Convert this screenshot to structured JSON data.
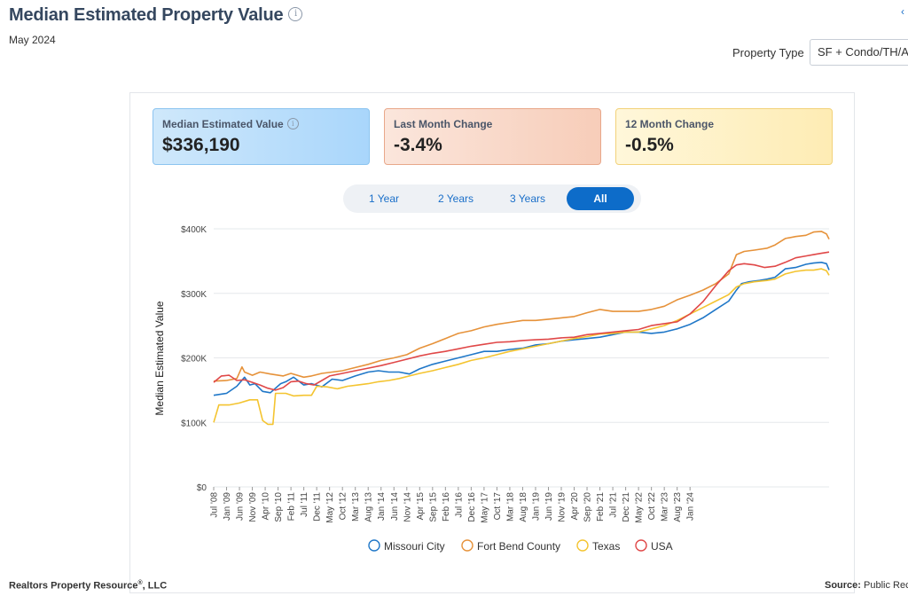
{
  "header": {
    "title": "Median Estimated Property Value",
    "subtitle": "May 2024",
    "property_type_label": "Property Type",
    "property_type_value": "SF + Condo/TH/A"
  },
  "cards": [
    {
      "label": "Median Estimated Value",
      "value": "$336,190"
    },
    {
      "label": "Last Month Change",
      "value": "-3.4%"
    },
    {
      "label": "12 Month Change",
      "value": "-0.5%"
    }
  ],
  "range_buttons": [
    "1 Year",
    "2 Years",
    "3 Years",
    "All"
  ],
  "range_active": "All",
  "footer": {
    "left": "Realtors Property Resource",
    "left_reg": "®",
    "left_suffix": ", LLC",
    "right_label": "Source:",
    "right_value": "Public Reco"
  },
  "chart_data": {
    "type": "line",
    "ylabel": "Median Estimated Value",
    "xlabel": "",
    "ylim": [
      0,
      400000
    ],
    "yticks": [
      0,
      100000,
      200000,
      300000,
      400000
    ],
    "ytick_labels": [
      "$0",
      "$100K",
      "$200K",
      "$300K",
      "$400K"
    ],
    "x_start": "2008-07",
    "x_end": "2024-05",
    "xtick_labels": [
      "Jul '08",
      "Jan '09",
      "Jun '09",
      "Nov '09",
      "Apr '10",
      "Sep '10",
      "Feb '11",
      "Jul '11",
      "Dec '11",
      "May '12",
      "Oct '12",
      "Mar '13",
      "Aug '13",
      "Jan '14",
      "Jun '14",
      "Nov '14",
      "Apr '15",
      "Sep '15",
      "Feb '16",
      "Jul '16",
      "Dec '16",
      "May '17",
      "Oct '17",
      "Mar '18",
      "Aug '18",
      "Jan '19",
      "Jun '19",
      "Nov '19",
      "Apr '20",
      "Sep '20",
      "Feb '21",
      "Jul '21",
      "Dec '21",
      "May '22",
      "Oct '22",
      "Mar '23",
      "Aug '23",
      "Jan '24"
    ],
    "grid": true,
    "legend": "bottom",
    "series": [
      {
        "name": "Missouri City",
        "color": "#1f77c8",
        "points": [
          [
            0,
            142000
          ],
          [
            5,
            145000
          ],
          [
            9,
            156000
          ],
          [
            12,
            170000
          ],
          [
            14,
            158000
          ],
          [
            16,
            160000
          ],
          [
            19,
            148000
          ],
          [
            22,
            146000
          ],
          [
            26,
            160000
          ],
          [
            28,
            163000
          ],
          [
            31,
            170000
          ],
          [
            35,
            158000
          ],
          [
            38,
            160000
          ],
          [
            42,
            155000
          ],
          [
            46,
            167000
          ],
          [
            50,
            165000
          ],
          [
            55,
            172000
          ],
          [
            60,
            178000
          ],
          [
            64,
            180000
          ],
          [
            68,
            178000
          ],
          [
            72,
            178000
          ],
          [
            76,
            175000
          ],
          [
            80,
            183000
          ],
          [
            85,
            190000
          ],
          [
            90,
            195000
          ],
          [
            95,
            200000
          ],
          [
            100,
            205000
          ],
          [
            105,
            210000
          ],
          [
            110,
            210000
          ],
          [
            115,
            213000
          ],
          [
            120,
            215000
          ],
          [
            125,
            220000
          ],
          [
            130,
            222000
          ],
          [
            135,
            226000
          ],
          [
            140,
            228000
          ],
          [
            145,
            230000
          ],
          [
            150,
            232000
          ],
          [
            155,
            236000
          ],
          [
            160,
            240000
          ],
          [
            165,
            240000
          ],
          [
            170,
            238000
          ],
          [
            175,
            240000
          ],
          [
            180,
            245000
          ],
          [
            185,
            252000
          ],
          [
            190,
            262000
          ],
          [
            195,
            275000
          ],
          [
            200,
            288000
          ],
          [
            203,
            305000
          ],
          [
            205,
            315000
          ],
          [
            208,
            318000
          ],
          [
            212,
            320000
          ],
          [
            215,
            322000
          ],
          [
            218,
            325000
          ],
          [
            222,
            338000
          ],
          [
            226,
            340000
          ],
          [
            230,
            345000
          ],
          [
            233,
            347000
          ],
          [
            236,
            348000
          ],
          [
            238,
            346000
          ],
          [
            239,
            336190
          ]
        ]
      },
      {
        "name": "Fort Bend County",
        "color": "#e6923a",
        "points": [
          [
            0,
            164000
          ],
          [
            5,
            165000
          ],
          [
            9,
            168000
          ],
          [
            11,
            186000
          ],
          [
            12,
            178000
          ],
          [
            15,
            173000
          ],
          [
            18,
            178000
          ],
          [
            22,
            175000
          ],
          [
            27,
            172000
          ],
          [
            30,
            176000
          ],
          [
            35,
            170000
          ],
          [
            38,
            172000
          ],
          [
            42,
            176000
          ],
          [
            46,
            178000
          ],
          [
            50,
            180000
          ],
          [
            55,
            185000
          ],
          [
            60,
            190000
          ],
          [
            65,
            196000
          ],
          [
            70,
            200000
          ],
          [
            75,
            205000
          ],
          [
            80,
            215000
          ],
          [
            85,
            222000
          ],
          [
            90,
            230000
          ],
          [
            95,
            238000
          ],
          [
            100,
            242000
          ],
          [
            105,
            248000
          ],
          [
            110,
            252000
          ],
          [
            115,
            255000
          ],
          [
            120,
            258000
          ],
          [
            125,
            258000
          ],
          [
            130,
            260000
          ],
          [
            135,
            262000
          ],
          [
            140,
            264000
          ],
          [
            145,
            270000
          ],
          [
            150,
            275000
          ],
          [
            155,
            272000
          ],
          [
            160,
            272000
          ],
          [
            165,
            272000
          ],
          [
            170,
            275000
          ],
          [
            175,
            280000
          ],
          [
            180,
            290000
          ],
          [
            185,
            297000
          ],
          [
            190,
            305000
          ],
          [
            195,
            315000
          ],
          [
            200,
            330000
          ],
          [
            203,
            360000
          ],
          [
            206,
            365000
          ],
          [
            210,
            367000
          ],
          [
            215,
            370000
          ],
          [
            218,
            375000
          ],
          [
            222,
            385000
          ],
          [
            226,
            388000
          ],
          [
            230,
            390000
          ],
          [
            233,
            395000
          ],
          [
            236,
            396000
          ],
          [
            238,
            392000
          ],
          [
            239,
            384000
          ]
        ]
      },
      {
        "name": "Texas",
        "color": "#f4c430",
        "points": [
          [
            0,
            100000
          ],
          [
            2,
            127000
          ],
          [
            6,
            127000
          ],
          [
            10,
            130000
          ],
          [
            14,
            135000
          ],
          [
            17,
            135000
          ],
          [
            19,
            103000
          ],
          [
            21,
            97000
          ],
          [
            23,
            97000
          ],
          [
            24,
            145000
          ],
          [
            28,
            145000
          ],
          [
            31,
            141000
          ],
          [
            35,
            142000
          ],
          [
            38,
            142000
          ],
          [
            40,
            156000
          ],
          [
            44,
            155000
          ],
          [
            48,
            152000
          ],
          [
            52,
            156000
          ],
          [
            56,
            158000
          ],
          [
            60,
            160000
          ],
          [
            64,
            163000
          ],
          [
            68,
            165000
          ],
          [
            72,
            168000
          ],
          [
            76,
            172000
          ],
          [
            80,
            176000
          ],
          [
            85,
            180000
          ],
          [
            90,
            185000
          ],
          [
            95,
            190000
          ],
          [
            100,
            196000
          ],
          [
            105,
            200000
          ],
          [
            110,
            205000
          ],
          [
            115,
            210000
          ],
          [
            120,
            214000
          ],
          [
            125,
            218000
          ],
          [
            130,
            222000
          ],
          [
            135,
            226000
          ],
          [
            140,
            230000
          ],
          [
            145,
            233000
          ],
          [
            150,
            237000
          ],
          [
            155,
            238000
          ],
          [
            160,
            240000
          ],
          [
            165,
            240000
          ],
          [
            170,
            245000
          ],
          [
            175,
            250000
          ],
          [
            180,
            258000
          ],
          [
            185,
            268000
          ],
          [
            190,
            278000
          ],
          [
            195,
            288000
          ],
          [
            200,
            298000
          ],
          [
            203,
            310000
          ],
          [
            206,
            315000
          ],
          [
            210,
            318000
          ],
          [
            215,
            320000
          ],
          [
            218,
            322000
          ],
          [
            222,
            330000
          ],
          [
            226,
            334000
          ],
          [
            230,
            336000
          ],
          [
            233,
            336000
          ],
          [
            236,
            338000
          ],
          [
            238,
            335000
          ],
          [
            239,
            328000
          ]
        ]
      },
      {
        "name": "USA",
        "color": "#e04848",
        "points": [
          [
            0,
            162000
          ],
          [
            3,
            172000
          ],
          [
            6,
            173000
          ],
          [
            9,
            165000
          ],
          [
            12,
            166000
          ],
          [
            15,
            162000
          ],
          [
            18,
            158000
          ],
          [
            21,
            153000
          ],
          [
            24,
            150000
          ],
          [
            27,
            154000
          ],
          [
            30,
            163000
          ],
          [
            33,
            164000
          ],
          [
            36,
            160000
          ],
          [
            39,
            158000
          ],
          [
            42,
            165000
          ],
          [
            45,
            172000
          ],
          [
            50,
            176000
          ],
          [
            55,
            180000
          ],
          [
            60,
            184000
          ],
          [
            65,
            188000
          ],
          [
            70,
            193000
          ],
          [
            75,
            198000
          ],
          [
            80,
            203000
          ],
          [
            85,
            207000
          ],
          [
            90,
            210000
          ],
          [
            95,
            214000
          ],
          [
            100,
            218000
          ],
          [
            105,
            221000
          ],
          [
            110,
            224000
          ],
          [
            115,
            225000
          ],
          [
            120,
            227000
          ],
          [
            125,
            228000
          ],
          [
            130,
            229000
          ],
          [
            135,
            231000
          ],
          [
            140,
            232000
          ],
          [
            145,
            236000
          ],
          [
            150,
            238000
          ],
          [
            155,
            240000
          ],
          [
            160,
            242000
          ],
          [
            165,
            244000
          ],
          [
            170,
            250000
          ],
          [
            175,
            253000
          ],
          [
            180,
            256000
          ],
          [
            185,
            268000
          ],
          [
            190,
            287000
          ],
          [
            195,
            312000
          ],
          [
            200,
            335000
          ],
          [
            203,
            344000
          ],
          [
            206,
            346000
          ],
          [
            210,
            344000
          ],
          [
            214,
            340000
          ],
          [
            218,
            342000
          ],
          [
            222,
            348000
          ],
          [
            226,
            355000
          ],
          [
            230,
            358000
          ],
          [
            233,
            360000
          ],
          [
            236,
            362000
          ],
          [
            239,
            364000
          ]
        ]
      }
    ]
  }
}
